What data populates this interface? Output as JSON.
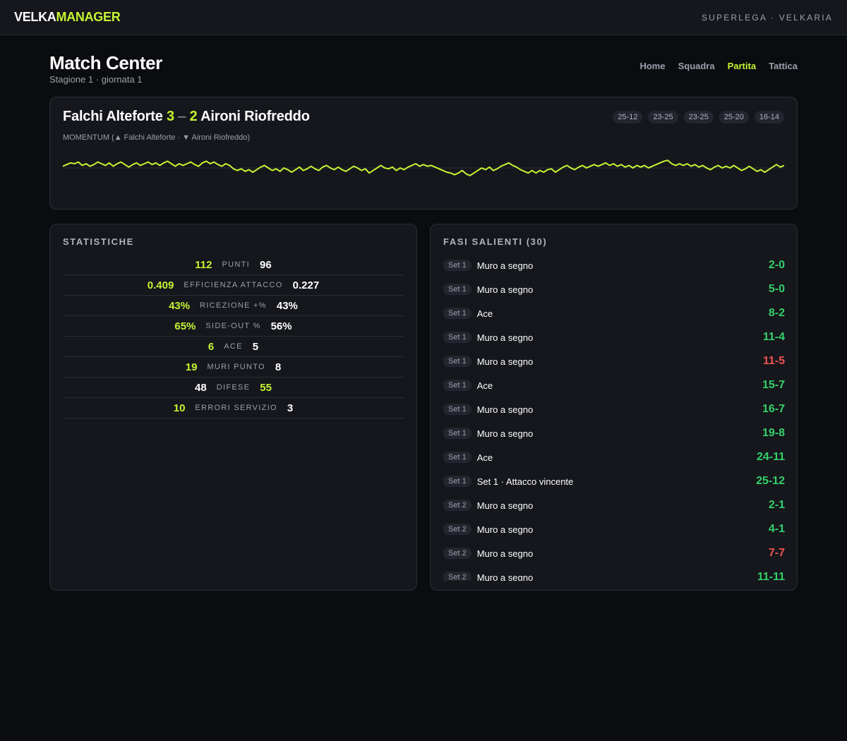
{
  "app": {
    "logo_part1": "VELKA",
    "logo_part2": "MANAGER",
    "league": "SUPERLEGA · VELKARIA"
  },
  "header": {
    "title": "Match Center",
    "subtitle": "Stagione 1 · giornata 1",
    "nav": [
      {
        "label": "Home",
        "active": false
      },
      {
        "label": "Squadra",
        "active": false
      },
      {
        "label": "Partita",
        "active": true
      },
      {
        "label": "Tattica",
        "active": false
      }
    ]
  },
  "match": {
    "home_team": "Falchi Alteforte",
    "home_score": "3",
    "dash": "–",
    "away_score": "2",
    "away_team": "Aironi Riofreddo",
    "sets": [
      "25-12",
      "23-25",
      "23-25",
      "25-20",
      "16-14"
    ],
    "momentum_label": "MOMENTUM (▲ Falchi Alteforte · ▼ Aironi Riofreddo)",
    "momentum_color": "#c6f432",
    "momentum": [
      0.2,
      0.4,
      0.6,
      0.5,
      0.7,
      0.3,
      0.5,
      0.2,
      0.4,
      0.7,
      0.5,
      0.3,
      0.6,
      0.2,
      0.5,
      0.7,
      0.4,
      0.1,
      0.4,
      0.6,
      0.3,
      0.5,
      0.7,
      0.4,
      0.6,
      0.3,
      0.6,
      0.8,
      0.5,
      0.2,
      0.5,
      0.3,
      0.5,
      0.7,
      0.4,
      0.2,
      0.6,
      0.8,
      0.5,
      0.7,
      0.4,
      0.2,
      0.5,
      0.3,
      -0.1,
      -0.3,
      -0.1,
      -0.4,
      -0.2,
      -0.5,
      -0.2,
      0.1,
      0.3,
      0.0,
      -0.3,
      -0.1,
      -0.4,
      0.0,
      -0.2,
      -0.5,
      -0.2,
      0.1,
      -0.3,
      -0.1,
      0.2,
      -0.1,
      -0.3,
      0.1,
      0.3,
      0.0,
      -0.2,
      0.1,
      -0.2,
      -0.4,
      -0.1,
      0.2,
      0.0,
      -0.3,
      -0.1,
      -0.6,
      -0.3,
      0.0,
      0.3,
      0.0,
      -0.1,
      0.1,
      -0.3,
      0.0,
      -0.2,
      0.1,
      0.3,
      0.5,
      0.2,
      0.4,
      0.2,
      0.3,
      0.1,
      -0.1,
      -0.3,
      -0.5,
      -0.6,
      -0.8,
      -0.6,
      -0.3,
      -0.7,
      -0.9,
      -0.6,
      -0.3,
      0.0,
      -0.2,
      0.1,
      -0.3,
      -0.1,
      0.2,
      0.4,
      0.6,
      0.3,
      0.1,
      -0.2,
      -0.4,
      -0.6,
      -0.3,
      -0.6,
      -0.3,
      -0.5,
      -0.2,
      -0.1,
      -0.5,
      -0.2,
      0.1,
      0.3,
      0.0,
      -0.2,
      0.1,
      0.3,
      0.0,
      0.2,
      0.4,
      0.2,
      0.4,
      0.6,
      0.3,
      0.5,
      0.2,
      0.4,
      0.1,
      0.3,
      0.0,
      0.3,
      0.1,
      0.3,
      0.0,
      0.2,
      0.4,
      0.6,
      0.8,
      0.9,
      0.5,
      0.3,
      0.5,
      0.3,
      0.5,
      0.2,
      0.4,
      0.1,
      0.3,
      0.0,
      -0.2,
      0.1,
      0.3,
      0.0,
      0.2,
      0.0,
      0.3,
      0.0,
      -0.3,
      -0.1,
      0.2,
      -0.1,
      -0.4,
      -0.2,
      -0.5,
      -0.2,
      0.1,
      0.4,
      0.1,
      0.3
    ]
  },
  "stats": {
    "title": "STATISTICHE",
    "rows": [
      {
        "home": "112",
        "label": "PUNTI",
        "away": "96",
        "lead": "home"
      },
      {
        "home": "0.409",
        "label": "EFFICIENZA ATTACCO",
        "away": "0.227",
        "lead": "home"
      },
      {
        "home": "43%",
        "label": "RICEZIONE +%",
        "away": "43%",
        "lead": "home"
      },
      {
        "home": "65%",
        "label": "SIDE-OUT %",
        "away": "56%",
        "lead": "home"
      },
      {
        "home": "6",
        "label": "ACE",
        "away": "5",
        "lead": "home"
      },
      {
        "home": "19",
        "label": "MURI PUNTO",
        "away": "8",
        "lead": "home"
      },
      {
        "home": "48",
        "label": "DIFESE",
        "away": "55",
        "lead": "away"
      },
      {
        "home": "10",
        "label": "ERRORI SERVIZIO",
        "away": "3",
        "lead": "home"
      }
    ]
  },
  "highlights": {
    "title": "FASI SALIENTI (30)",
    "items": [
      {
        "set": "Set 1",
        "text": "Muro a segno",
        "score": "2-0",
        "outcome": "win"
      },
      {
        "set": "Set 1",
        "text": "Muro a segno",
        "score": "5-0",
        "outcome": "win"
      },
      {
        "set": "Set 1",
        "text": "Ace",
        "score": "8-2",
        "outcome": "win"
      },
      {
        "set": "Set 1",
        "text": "Muro a segno",
        "score": "11-4",
        "outcome": "win"
      },
      {
        "set": "Set 1",
        "text": "Muro a segno",
        "score": "11-5",
        "outcome": "lose"
      },
      {
        "set": "Set 1",
        "text": "Ace",
        "score": "15-7",
        "outcome": "win"
      },
      {
        "set": "Set 1",
        "text": "Muro a segno",
        "score": "16-7",
        "outcome": "win"
      },
      {
        "set": "Set 1",
        "text": "Muro a segno",
        "score": "19-8",
        "outcome": "win"
      },
      {
        "set": "Set 1",
        "text": "Ace",
        "score": "24-11",
        "outcome": "win"
      },
      {
        "set": "Set 1",
        "text": "Set 1 · Attacco vincente",
        "score": "25-12",
        "outcome": "win"
      },
      {
        "set": "Set 2",
        "text": "Muro a segno",
        "score": "2-1",
        "outcome": "win"
      },
      {
        "set": "Set 2",
        "text": "Muro a segno",
        "score": "4-1",
        "outcome": "win"
      },
      {
        "set": "Set 2",
        "text": "Muro a segno",
        "score": "7-7",
        "outcome": "lose"
      },
      {
        "set": "Set 2",
        "text": "Muro a segno",
        "score": "11-11",
        "outcome": "win"
      }
    ]
  }
}
